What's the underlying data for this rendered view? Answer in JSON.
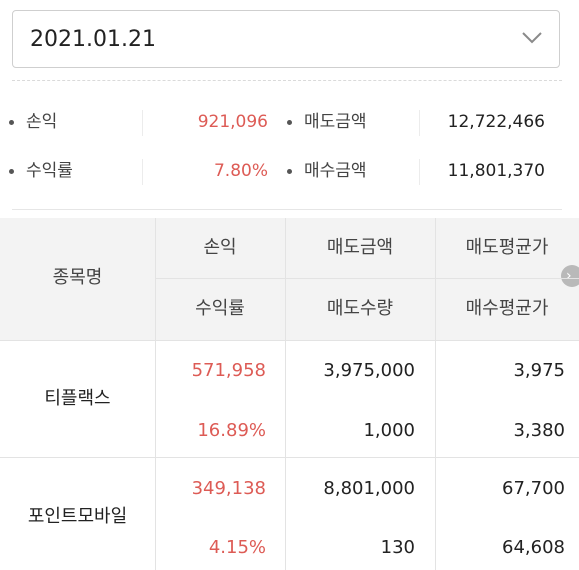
{
  "date_select": {
    "value": "2021.01.21",
    "icon": "chevron-down-icon"
  },
  "summary": {
    "profit_label": "손익",
    "profit_value": "921,096",
    "sell_amount_label": "매도금액",
    "sell_amount_value": "12,722,466",
    "return_label": "수익률",
    "return_value": "7.80%",
    "buy_amount_label": "매수금액",
    "buy_amount_value": "11,801,370"
  },
  "table": {
    "headers": {
      "name": "종목명",
      "profit": "손익",
      "return_rate": "수익률",
      "sell_amount": "매도금액",
      "sell_qty": "매도수량",
      "sell_avg": "매도평균가",
      "buy_avg": "매수평균가"
    },
    "rows": [
      {
        "name": "티플랙스",
        "profit": "571,958",
        "return_rate": "16.89%",
        "sell_amount": "3,975,000",
        "sell_qty": "1,000",
        "sell_avg": "3,975",
        "buy_avg": "3,380"
      },
      {
        "name": "포인트모바일",
        "profit": "349,138",
        "return_rate": "4.15%",
        "sell_amount": "8,801,000",
        "sell_qty": "130",
        "sell_avg": "67,700",
        "buy_avg": "64,608"
      }
    ],
    "scroll_icon": "chevron-right-icon"
  },
  "colors": {
    "positive": "#dd5b55",
    "header_bg": "#f3f3f3"
  }
}
